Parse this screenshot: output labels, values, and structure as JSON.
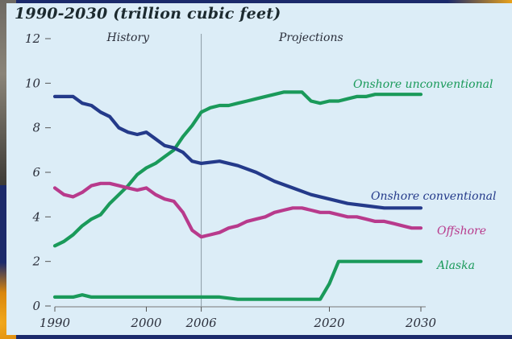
{
  "chart_data": {
    "type": "line",
    "title": "1990-2030 (trillion cubic feet)",
    "xlabel": "",
    "ylabel": "",
    "xlim": [
      1990,
      2030
    ],
    "ylim": [
      0,
      12
    ],
    "x_ticks": [
      1990,
      2000,
      2006,
      2020,
      2030
    ],
    "y_ticks": [
      0,
      2,
      4,
      6,
      8,
      10,
      12
    ],
    "grid": false,
    "divider_x": 2006,
    "regions": [
      {
        "label": "History",
        "x": 1998
      },
      {
        "label": "Projections",
        "x": 2018
      }
    ],
    "series": [
      {
        "name": "Onshore unconventional",
        "color": "#1a9a5a",
        "x": [
          1990,
          1991,
          1992,
          1993,
          1994,
          1995,
          1996,
          1997,
          1998,
          1999,
          2000,
          2001,
          2002,
          2003,
          2004,
          2005,
          2006,
          2007,
          2008,
          2009,
          2010,
          2011,
          2012,
          2013,
          2014,
          2015,
          2016,
          2017,
          2018,
          2019,
          2020,
          2021,
          2022,
          2023,
          2024,
          2025,
          2026,
          2027,
          2028,
          2029,
          2030
        ],
        "values": [
          2.7,
          2.9,
          3.2,
          3.6,
          3.9,
          4.1,
          4.6,
          5.0,
          5.4,
          5.9,
          6.2,
          6.4,
          6.7,
          7.0,
          7.6,
          8.1,
          8.7,
          8.9,
          9.0,
          9.0,
          9.1,
          9.2,
          9.3,
          9.4,
          9.5,
          9.6,
          9.6,
          9.6,
          9.2,
          9.1,
          9.2,
          9.2,
          9.3,
          9.4,
          9.4,
          9.5,
          9.5,
          9.5,
          9.5,
          9.5,
          9.5
        ]
      },
      {
        "name": "Onshore conventional",
        "color": "#243a8a",
        "x": [
          1990,
          1991,
          1992,
          1993,
          1994,
          1995,
          1996,
          1997,
          1998,
          1999,
          2000,
          2001,
          2002,
          2003,
          2004,
          2005,
          2006,
          2008,
          2010,
          2012,
          2014,
          2016,
          2018,
          2020,
          2022,
          2024,
          2026,
          2028,
          2030
        ],
        "values": [
          9.4,
          9.4,
          9.4,
          9.1,
          9.0,
          8.7,
          8.5,
          8.0,
          7.8,
          7.7,
          7.8,
          7.5,
          7.2,
          7.1,
          6.9,
          6.5,
          6.4,
          6.5,
          6.3,
          6.0,
          5.6,
          5.3,
          5.0,
          4.8,
          4.6,
          4.5,
          4.4,
          4.4,
          4.4
        ]
      },
      {
        "name": "Offshore",
        "color": "#b83a8c",
        "x": [
          1990,
          1991,
          1992,
          1993,
          1994,
          1995,
          1996,
          1997,
          1998,
          1999,
          2000,
          2001,
          2002,
          2003,
          2004,
          2005,
          2006,
          2007,
          2008,
          2009,
          2010,
          2011,
          2012,
          2013,
          2014,
          2015,
          2016,
          2017,
          2018,
          2019,
          2020,
          2021,
          2022,
          2023,
          2024,
          2025,
          2026,
          2027,
          2028,
          2029,
          2030
        ],
        "values": [
          5.3,
          5.0,
          4.9,
          5.1,
          5.4,
          5.5,
          5.5,
          5.4,
          5.3,
          5.2,
          5.3,
          5.0,
          4.8,
          4.7,
          4.2,
          3.4,
          3.1,
          3.2,
          3.3,
          3.5,
          3.6,
          3.8,
          3.9,
          4.0,
          4.2,
          4.3,
          4.4,
          4.4,
          4.3,
          4.2,
          4.2,
          4.1,
          4.0,
          4.0,
          3.9,
          3.8,
          3.8,
          3.7,
          3.6,
          3.5,
          3.5
        ]
      },
      {
        "name": "Alaska",
        "color": "#1a9a5a",
        "x": [
          1990,
          1992,
          1993,
          1994,
          1996,
          1998,
          2000,
          2002,
          2004,
          2006,
          2008,
          2010,
          2012,
          2014,
          2016,
          2018,
          2019,
          2020,
          2020.5,
          2021,
          2022,
          2024,
          2026,
          2028,
          2030
        ],
        "values": [
          0.4,
          0.4,
          0.5,
          0.4,
          0.4,
          0.4,
          0.4,
          0.4,
          0.4,
          0.4,
          0.4,
          0.3,
          0.3,
          0.3,
          0.3,
          0.3,
          0.3,
          1.0,
          1.5,
          2.0,
          2.0,
          2.0,
          2.0,
          2.0,
          2.0
        ]
      }
    ]
  }
}
